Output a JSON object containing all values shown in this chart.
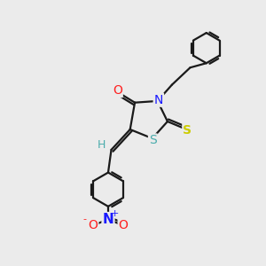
{
  "background_color": "#ebebeb",
  "bond_color": "#1a1a1a",
  "bond_width": 1.6,
  "font_size": 10,
  "fig_size": [
    3.0,
    3.0
  ],
  "dpi": 100,
  "colors": {
    "N": "#1a1aff",
    "O": "#ff2020",
    "S_yellow": "#cccc00",
    "S_teal": "#4aacac",
    "H": "#4aacac"
  }
}
